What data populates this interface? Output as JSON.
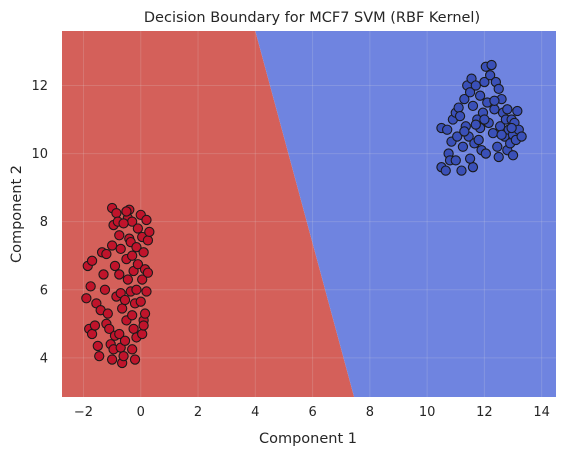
{
  "chart_data": {
    "type": "scatter",
    "title": "Decision Boundary for MCF7 SVM (RBF Kernel)",
    "xlabel": "Component 1",
    "ylabel": "Component 2",
    "xlim": [
      -2.75,
      14.5
    ],
    "ylim": [
      2.85,
      13.6
    ],
    "xticks": [
      -2,
      0,
      2,
      4,
      6,
      8,
      10,
      12,
      14
    ],
    "xtick_labels": [
      "−2",
      "0",
      "2",
      "4",
      "6",
      "8",
      "10",
      "12",
      "14"
    ],
    "yticks": [
      4,
      6,
      8,
      10,
      12
    ],
    "ytick_labels": [
      "4",
      "6",
      "8",
      "10",
      "12"
    ],
    "grid": true,
    "decision_boundary": {
      "description": "linear-looking RBF boundary between regions",
      "points": [
        [
          4.0,
          13.6
        ],
        [
          7.45,
          2.85
        ]
      ],
      "left_region_color": "#d4605a",
      "right_region_color": "#6f84e0"
    },
    "colors": {
      "class_red": "#c0142b",
      "class_blue": "#3a50b8",
      "edge": "#1a1a1a",
      "grid": "#e6e6e6"
    },
    "series": [
      {
        "class": "red",
        "points": [
          [
            -1.9,
            5.75
          ],
          [
            -1.85,
            6.7
          ],
          [
            -1.7,
            6.85
          ],
          [
            -1.75,
            6.1
          ],
          [
            -1.55,
            5.6
          ],
          [
            -1.8,
            4.85
          ],
          [
            -1.7,
            4.7
          ],
          [
            -1.6,
            4.95
          ],
          [
            -1.5,
            4.35
          ],
          [
            -1.45,
            4.05
          ],
          [
            -1.4,
            5.4
          ],
          [
            -1.3,
            6.45
          ],
          [
            -1.35,
            7.1
          ],
          [
            -1.2,
            7.05
          ],
          [
            -1.25,
            6.0
          ],
          [
            -1.15,
            5.3
          ],
          [
            -1.2,
            5.0
          ],
          [
            -1.1,
            4.85
          ],
          [
            -1.05,
            4.4
          ],
          [
            -1.0,
            3.95
          ],
          [
            -0.95,
            4.25
          ],
          [
            -0.9,
            4.65
          ],
          [
            -0.85,
            5.8
          ],
          [
            -0.9,
            6.7
          ],
          [
            -1.0,
            7.3
          ],
          [
            -0.95,
            7.9
          ],
          [
            -1.0,
            8.4
          ],
          [
            -0.85,
            8.25
          ],
          [
            -0.8,
            8.0
          ],
          [
            -0.75,
            7.6
          ],
          [
            -0.7,
            7.2
          ],
          [
            -0.75,
            6.45
          ],
          [
            -0.7,
            5.9
          ],
          [
            -0.65,
            5.45
          ],
          [
            -0.75,
            4.7
          ],
          [
            -0.7,
            4.3
          ],
          [
            -0.65,
            3.85
          ],
          [
            -0.6,
            4.05
          ],
          [
            -0.55,
            4.5
          ],
          [
            -0.5,
            5.1
          ],
          [
            -0.55,
            5.7
          ],
          [
            -0.45,
            6.3
          ],
          [
            -0.5,
            6.9
          ],
          [
            -0.4,
            7.5
          ],
          [
            -0.45,
            8.1
          ],
          [
            -0.4,
            8.35
          ],
          [
            -0.3,
            8.0
          ],
          [
            -0.35,
            7.4
          ],
          [
            -0.3,
            7.0
          ],
          [
            -0.25,
            6.55
          ],
          [
            -0.35,
            5.95
          ],
          [
            -0.3,
            5.25
          ],
          [
            -0.25,
            4.85
          ],
          [
            -0.3,
            4.25
          ],
          [
            -0.2,
            3.95
          ],
          [
            -0.15,
            4.6
          ],
          [
            -0.2,
            5.6
          ],
          [
            -0.15,
            6.0
          ],
          [
            -0.1,
            6.75
          ],
          [
            -0.15,
            7.25
          ],
          [
            -0.1,
            7.8
          ],
          [
            0.0,
            8.2
          ],
          [
            0.05,
            7.55
          ],
          [
            0.1,
            7.1
          ],
          [
            0.05,
            6.3
          ],
          [
            0.0,
            5.65
          ],
          [
            0.1,
            5.1
          ],
          [
            0.05,
            4.7
          ],
          [
            0.15,
            5.3
          ],
          [
            0.2,
            5.95
          ],
          [
            0.25,
            7.45
          ],
          [
            0.3,
            7.7
          ],
          [
            0.2,
            8.05
          ],
          [
            0.15,
            6.6
          ],
          [
            0.25,
            6.5
          ],
          [
            0.1,
            4.95
          ],
          [
            -0.6,
            7.95
          ],
          [
            -0.5,
            8.3
          ]
        ]
      },
      {
        "class": "blue",
        "points": [
          [
            10.5,
            9.6
          ],
          [
            10.5,
            10.75
          ],
          [
            10.7,
            10.7
          ],
          [
            10.65,
            9.5
          ],
          [
            10.75,
            10.0
          ],
          [
            10.8,
            9.8
          ],
          [
            10.85,
            10.35
          ],
          [
            10.9,
            11.0
          ],
          [
            11.0,
            9.8
          ],
          [
            11.0,
            11.2
          ],
          [
            11.05,
            10.5
          ],
          [
            11.1,
            11.35
          ],
          [
            11.15,
            11.1
          ],
          [
            11.2,
            9.5
          ],
          [
            11.25,
            10.2
          ],
          [
            11.3,
            11.6
          ],
          [
            11.35,
            10.8
          ],
          [
            11.4,
            12.0
          ],
          [
            11.45,
            10.5
          ],
          [
            11.5,
            11.8
          ],
          [
            11.55,
            12.2
          ],
          [
            11.6,
            11.4
          ],
          [
            11.6,
            9.6
          ],
          [
            11.65,
            10.3
          ],
          [
            11.7,
            12.0
          ],
          [
            11.75,
            11.0
          ],
          [
            11.8,
            10.4
          ],
          [
            11.85,
            11.7
          ],
          [
            11.9,
            10.1
          ],
          [
            11.95,
            11.2
          ],
          [
            12.0,
            12.1
          ],
          [
            12.05,
            10.0
          ],
          [
            12.05,
            12.55
          ],
          [
            12.1,
            11.5
          ],
          [
            12.15,
            10.9
          ],
          [
            12.2,
            12.3
          ],
          [
            12.25,
            12.6
          ],
          [
            12.3,
            10.6
          ],
          [
            12.35,
            11.3
          ],
          [
            12.4,
            12.1
          ],
          [
            12.45,
            10.2
          ],
          [
            12.5,
            11.9
          ],
          [
            12.5,
            9.9
          ],
          [
            12.55,
            10.8
          ],
          [
            12.6,
            11.6
          ],
          [
            12.65,
            11.2
          ],
          [
            12.7,
            10.5
          ],
          [
            12.75,
            11.0
          ],
          [
            12.8,
            10.1
          ],
          [
            12.8,
            11.3
          ],
          [
            12.85,
            10.7
          ],
          [
            12.9,
            10.3
          ],
          [
            12.95,
            11.0
          ],
          [
            13.0,
            10.55
          ],
          [
            13.0,
            9.95
          ],
          [
            13.05,
            10.9
          ],
          [
            13.1,
            10.4
          ],
          [
            13.15,
            11.25
          ],
          [
            13.2,
            10.7
          ],
          [
            13.3,
            10.5
          ],
          [
            11.3,
            10.65
          ],
          [
            11.85,
            10.75
          ],
          [
            12.6,
            10.55
          ],
          [
            11.5,
            9.85
          ],
          [
            12.0,
            11.0
          ],
          [
            12.35,
            11.55
          ],
          [
            11.7,
            10.85
          ],
          [
            12.95,
            10.75
          ]
        ]
      }
    ]
  }
}
